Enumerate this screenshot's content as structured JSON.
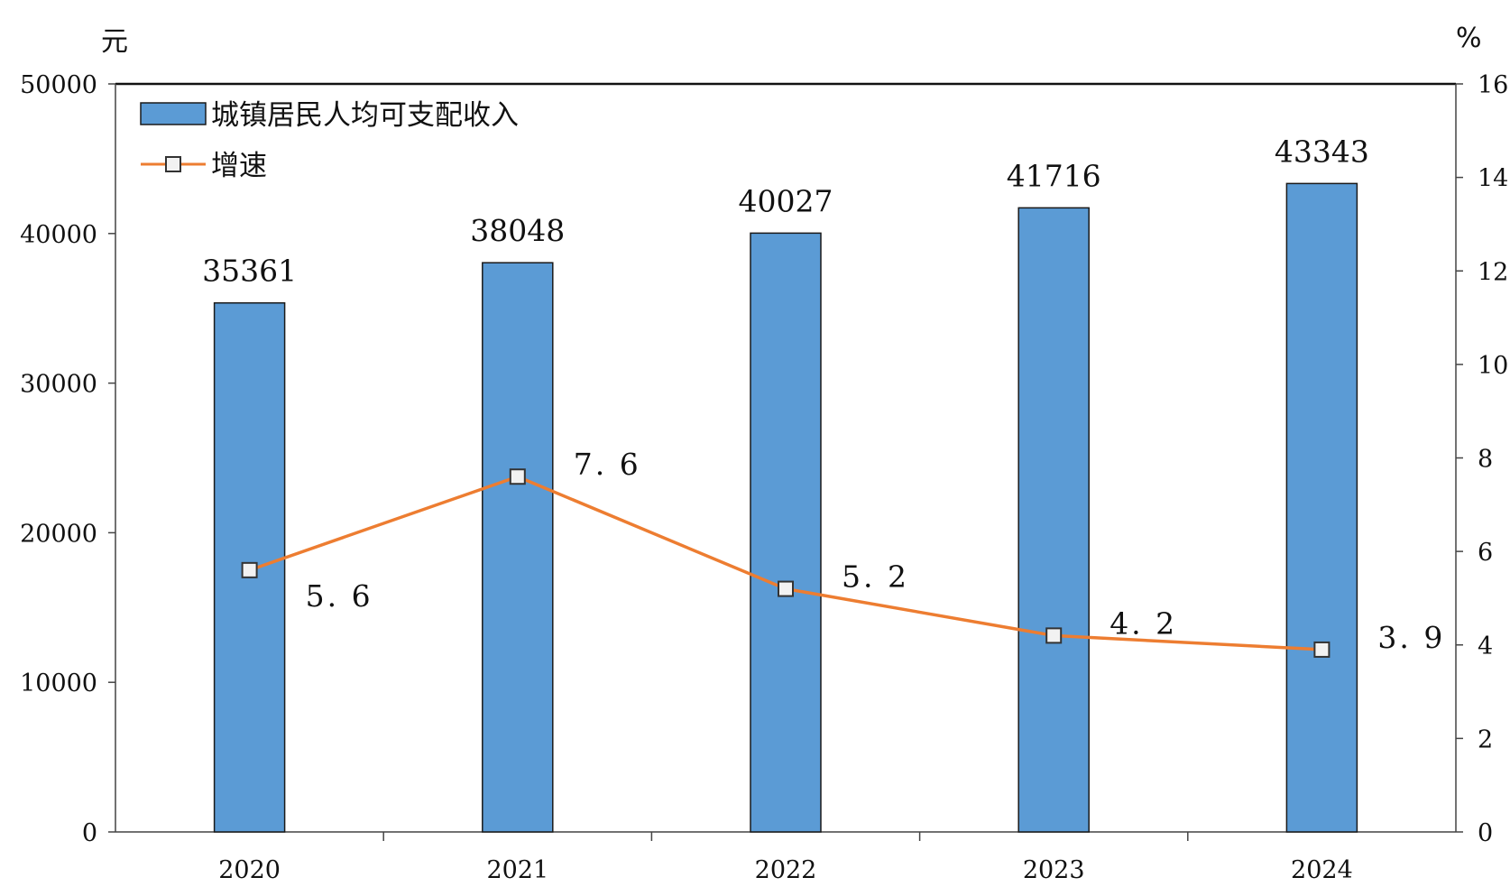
{
  "chart_data": {
    "type": "bar",
    "categories": [
      "2020",
      "2021",
      "2022",
      "2023",
      "2024"
    ],
    "series": [
      {
        "name": "城镇居民人均可支配收入",
        "type": "bar",
        "axis": "left",
        "values": [
          35361,
          38048,
          40027,
          41716,
          43343
        ],
        "color": "#5b9bd5"
      },
      {
        "name": "增速",
        "type": "line",
        "axis": "right",
        "values": [
          5.6,
          7.6,
          5.2,
          4.2,
          3.9
        ],
        "color": "#ed7d31"
      }
    ],
    "y_left": {
      "unit": "元",
      "ylim": [
        0,
        50000
      ],
      "ticks": [
        "0",
        "10000",
        "20000",
        "30000",
        "40000",
        "50000"
      ]
    },
    "y_right": {
      "unit": "%",
      "ylim": [
        0,
        16
      ],
      "ticks": [
        "0",
        "2",
        "4",
        "6",
        "8",
        "10",
        "12",
        "14",
        "16"
      ]
    },
    "bar_labels": [
      "35361",
      "38048",
      "40027",
      "41716",
      "43343"
    ],
    "line_labels": [
      "5. 6",
      "7. 6",
      "5. 2",
      "4. 2",
      "3. 9"
    ],
    "legend": {
      "position": "top-left"
    },
    "grid": false
  }
}
